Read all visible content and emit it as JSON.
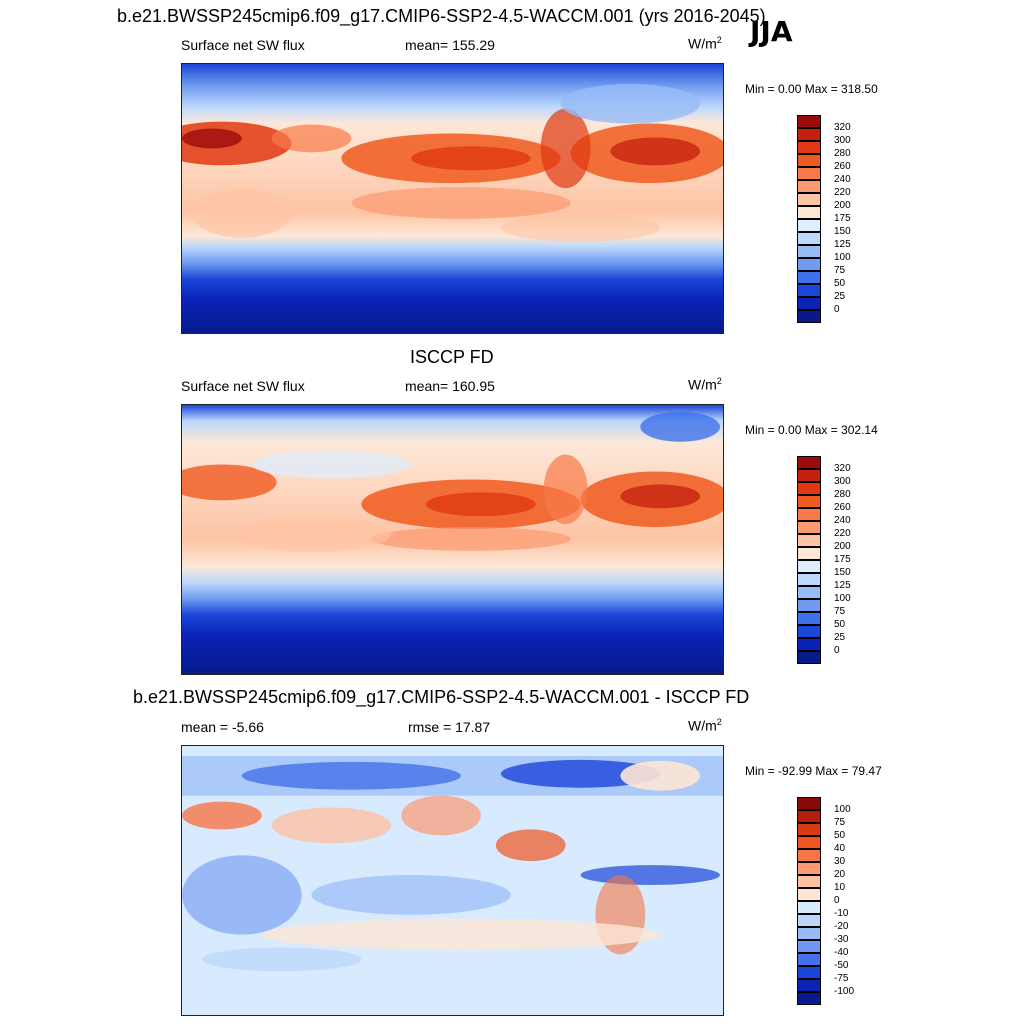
{
  "season": "JJA",
  "panels": [
    {
      "id": "model",
      "title": "b.e21.BWSSP245cmip6.f09_g17.CMIP6-SSP2-4.5-WACCM.001 (yrs 2016-2045)",
      "left_label": "Surface net SW flux",
      "center_label": "mean= 155.29",
      "units_base": "W/m",
      "units_exp": "2",
      "minmax": "Min =   0.00 Max = 318.50",
      "colorbar_labels": [
        "320",
        "300",
        "280",
        "260",
        "240",
        "220",
        "200",
        "175",
        "150",
        "125",
        "100",
        "75",
        "50",
        "25",
        "0"
      ],
      "colorbar_colors": [
        "#9b0b0b",
        "#c3200e",
        "#e03810",
        "#f05a20",
        "#f77a48",
        "#fb9a70",
        "#fdc4a4",
        "#fde8d8",
        "#dceeff",
        "#bcd8fb",
        "#97bcf6",
        "#6f9bf0",
        "#3f72ea",
        "#1a46d9",
        "#0a22b6",
        "#061a8c"
      ]
    },
    {
      "id": "obs",
      "title": "ISCCP FD",
      "left_label": "Surface net SW flux",
      "center_label": "mean= 160.95",
      "units_base": "W/m",
      "units_exp": "2",
      "minmax": "Min =   0.00 Max = 302.14",
      "colorbar_labels": [
        "320",
        "300",
        "280",
        "260",
        "240",
        "220",
        "200",
        "175",
        "150",
        "125",
        "100",
        "75",
        "50",
        "25",
        "0"
      ],
      "colorbar_colors": [
        "#9b0b0b",
        "#c3200e",
        "#e03810",
        "#f05a20",
        "#f77a48",
        "#fb9a70",
        "#fdc4a4",
        "#fde8d8",
        "#dceeff",
        "#bcd8fb",
        "#97bcf6",
        "#6f9bf0",
        "#3f72ea",
        "#1a46d9",
        "#0a22b6",
        "#061a8c"
      ]
    },
    {
      "id": "diff",
      "title": "b.e21.BWSSP245cmip6.f09_g17.CMIP6-SSP2-4.5-WACCM.001 - ISCCP FD",
      "left_label": "mean =  -5.66",
      "center_label": "rmse =  17.87",
      "units_base": "W/m",
      "units_exp": "2",
      "minmax": "Min = -92.99 Max =  79.47",
      "colorbar_labels": [
        "100",
        "75",
        "50",
        "40",
        "30",
        "20",
        "10",
        "0",
        "-10",
        "-20",
        "-30",
        "-40",
        "-50",
        "-75",
        "-100"
      ],
      "colorbar_colors": [
        "#8a0a0a",
        "#b51d0e",
        "#d93a12",
        "#ef5520",
        "#f77648",
        "#fb9a74",
        "#fdc1a2",
        "#fde6d6",
        "#d8eafe",
        "#bcd6fb",
        "#98bcf6",
        "#7098f0",
        "#4470ea",
        "#1a44d8",
        "#0a24b4",
        "#061a8c"
      ]
    }
  ],
  "chart_data": [
    {
      "type": "heatmap",
      "title": "b.e21.BWSSP245cmip6.f09_g17.CMIP6-SSP2-4.5-WACCM.001 (yrs 2016-2045)",
      "variable": "Surface net SW flux",
      "units": "W/m2",
      "season": "JJA",
      "mean": 155.29,
      "min": 0.0,
      "max": 318.5,
      "contour_levels": [
        0,
        25,
        50,
        75,
        100,
        125,
        150,
        175,
        200,
        220,
        240,
        260,
        280,
        300,
        320
      ]
    },
    {
      "type": "heatmap",
      "title": "ISCCP FD",
      "variable": "Surface net SW flux",
      "units": "W/m2",
      "season": "JJA",
      "mean": 160.95,
      "min": 0.0,
      "max": 302.14,
      "contour_levels": [
        0,
        25,
        50,
        75,
        100,
        125,
        150,
        175,
        200,
        220,
        240,
        260,
        280,
        300,
        320
      ]
    },
    {
      "type": "heatmap",
      "title": "b.e21.BWSSP245cmip6.f09_g17.CMIP6-SSP2-4.5-WACCM.001 - ISCCP FD",
      "variable": "Surface net SW flux difference",
      "units": "W/m2",
      "season": "JJA",
      "mean": -5.66,
      "rmse": 17.87,
      "min": -92.99,
      "max": 79.47,
      "contour_levels": [
        -100,
        -75,
        -50,
        -40,
        -30,
        -20,
        -10,
        0,
        10,
        20,
        30,
        40,
        50,
        75,
        100
      ]
    }
  ]
}
